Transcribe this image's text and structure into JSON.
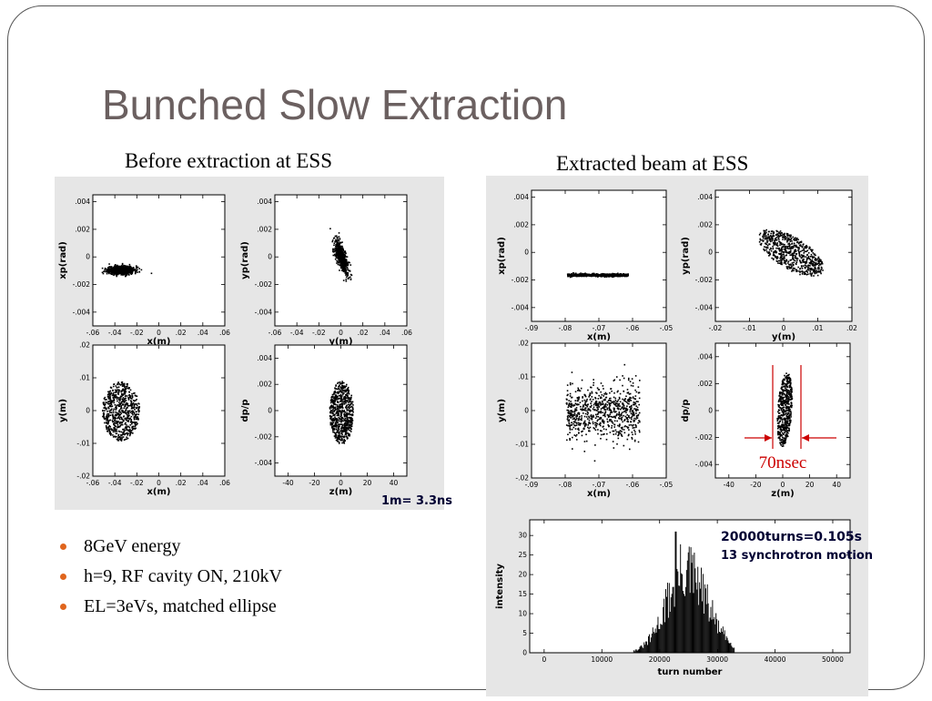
{
  "slide": {
    "title": "Bunched Slow Extraction",
    "left_caption": "Before extraction at ESS",
    "right_caption": "Extracted beam at ESS",
    "scale_note": "1m= 3.3ns",
    "width_annotation": "70nsec",
    "histogram_note_1": "20000turns=0.105s",
    "histogram_note_2": "13 synchrotron motion"
  },
  "bullets": [
    {
      "text": "8GeV energy"
    },
    {
      "text": "h=9, RF cavity ON, 210kV"
    },
    {
      "text": "EL=3eVs, matched ellipse"
    }
  ],
  "colors": {
    "bullet": "#e0651d",
    "title": "#6b6060",
    "annotation": "#cc0000"
  },
  "chart_data": [
    {
      "type": "scatter",
      "id": "before_x_xp",
      "xlabel": "x(m)",
      "ylabel": "xp(rad)",
      "xticks": [
        "-.06",
        "-.04",
        "-.02",
        "0",
        ".02",
        ".04",
        ".06"
      ],
      "yticks": [
        ".004",
        ".002",
        "0",
        "-.002",
        "-.004"
      ],
      "xlim": [
        -0.06,
        0.06
      ],
      "ylim": [
        -0.005,
        0.0045
      ],
      "cloud": {
        "center": [
          -0.035,
          -0.0009
        ],
        "spread": [
          0.012,
          0.0003
        ],
        "corr": 0,
        "n": 800,
        "seed": 11,
        "shape": "gauss"
      }
    },
    {
      "type": "scatter",
      "id": "before_y_yp",
      "xlabel": "y(m)",
      "ylabel": "yp(rad)",
      "xticks": [
        "-.06",
        "-.04",
        "-.02",
        "0",
        ".02",
        ".04",
        ".06"
      ],
      "yticks": [
        ".004",
        ".002",
        "0",
        "-.002",
        "-.004"
      ],
      "xlim": [
        -0.06,
        0.06
      ],
      "ylim": [
        -0.005,
        0.0045
      ],
      "cloud": {
        "center": [
          0,
          0
        ],
        "spread": [
          0.006,
          0.0009
        ],
        "corr": -0.9,
        "n": 600,
        "seed": 12,
        "shape": "gauss"
      }
    },
    {
      "type": "scatter",
      "id": "before_x_y",
      "xlabel": "x(m)",
      "ylabel": "y(m)",
      "xticks": [
        "-.06",
        "-.04",
        "-.02",
        "0",
        ".02",
        ".04",
        ".06"
      ],
      "yticks": [
        ".02",
        ".01",
        "0",
        "-.01",
        "-.02"
      ],
      "xlim": [
        -0.06,
        0.06
      ],
      "ylim": [
        -0.02,
        0.02
      ],
      "cloud": {
        "center": [
          -0.035,
          0
        ],
        "spread": [
          0.017,
          0.009
        ],
        "corr": 0,
        "n": 700,
        "seed": 13,
        "shape": "ellipse"
      }
    },
    {
      "type": "scatter",
      "id": "before_z_dpp",
      "xlabel": "z(m)",
      "ylabel": "dp/p",
      "xticks": [
        "-40",
        "-20",
        "0",
        "20",
        "40"
      ],
      "yticks": [
        ".004",
        ".002",
        "0",
        "-.002",
        "-.004"
      ],
      "xlim": [
        -50,
        50
      ],
      "ylim": [
        -0.005,
        0.005
      ],
      "cloud": {
        "center": [
          0,
          -0.0001
        ],
        "spread": [
          9,
          0.0024
        ],
        "corr": 0,
        "n": 700,
        "seed": 14,
        "shape": "ellipse"
      }
    },
    {
      "type": "scatter",
      "id": "extracted_x_xp",
      "xlabel": "x(m)",
      "ylabel": "xp(rad)",
      "xticks": [
        "-.09",
        "-.08",
        "-.07",
        "-.06",
        "-.05"
      ],
      "yticks": [
        ".004",
        ".002",
        "0",
        "-.002",
        "-.004"
      ],
      "xlim": [
        -0.09,
        -0.05
      ],
      "ylim": [
        -0.005,
        0.0045
      ],
      "cloud": {
        "center": [
          -0.0705,
          -0.0016
        ],
        "spread": [
          0.009,
          8e-05
        ],
        "corr": 0.7,
        "n": 700,
        "seed": 21,
        "shape": "band",
        "slope": 1.05e-05
      }
    },
    {
      "type": "scatter",
      "id": "extracted_y_yp",
      "xlabel": "y(m)",
      "ylabel": "yp(rad)",
      "xticks": [
        "-.02",
        "-.01",
        "0",
        ".01",
        ".02"
      ],
      "yticks": [
        ".004",
        ".002",
        "0",
        "-.002",
        "-.004"
      ],
      "xlim": [
        -0.02,
        0.02
      ],
      "ylim": [
        -0.005,
        0.0045
      ],
      "cloud": {
        "center": [
          0.002,
          0
        ],
        "spread": [
          0.0095,
          0.0013
        ],
        "corr": -0.85,
        "n": 700,
        "seed": 22,
        "shape": "ellipse"
      }
    },
    {
      "type": "scatter",
      "id": "extracted_x_y",
      "xlabel": "x(m)",
      "ylabel": "y(m)",
      "xticks": [
        "-.09",
        "-.08",
        "-.07",
        "-.06",
        "-.05"
      ],
      "yticks": [
        ".02",
        ".01",
        "0",
        "-.01",
        "-.02"
      ],
      "xlim": [
        -0.09,
        -0.05
      ],
      "ylim": [
        -0.02,
        0.02
      ],
      "cloud": {
        "center": [
          -0.069,
          0
        ],
        "spread": [
          0.0115,
          0.009
        ],
        "corr": 0,
        "n": 800,
        "seed": 23,
        "shape": "rect"
      }
    },
    {
      "type": "scatter",
      "id": "extracted_z_dpp",
      "xlabel": "z(m)",
      "ylabel": "dp/p",
      "xticks": [
        "-40",
        "-20",
        "0",
        "20",
        "40"
      ],
      "yticks": [
        ".004",
        ".002",
        "0",
        "-.002",
        "-.004"
      ],
      "xlim": [
        -50,
        50
      ],
      "ylim": [
        -0.005,
        0.005
      ],
      "cloud": {
        "center": [
          1,
          0.0001
        ],
        "spread": [
          5.5,
          0.0026
        ],
        "corr": 0.35,
        "n": 550,
        "seed": 24,
        "shape": "ellipse"
      }
    },
    {
      "type": "bar",
      "id": "extraction_histogram",
      "xlabel": "turn number",
      "ylabel": "intensity",
      "xticks": [
        "0",
        "10000",
        "20000",
        "30000",
        "40000",
        "50000"
      ],
      "yticks": [
        "0",
        "5",
        "10",
        "15",
        "20",
        "25",
        "30"
      ],
      "xlim": [
        -2500,
        53000
      ],
      "ylim": [
        0,
        34
      ],
      "distribution": {
        "from": 15000,
        "to": 33000,
        "peak_at": 24500,
        "peak_value": 31,
        "bin_width": 150,
        "seed": 31
      }
    }
  ]
}
